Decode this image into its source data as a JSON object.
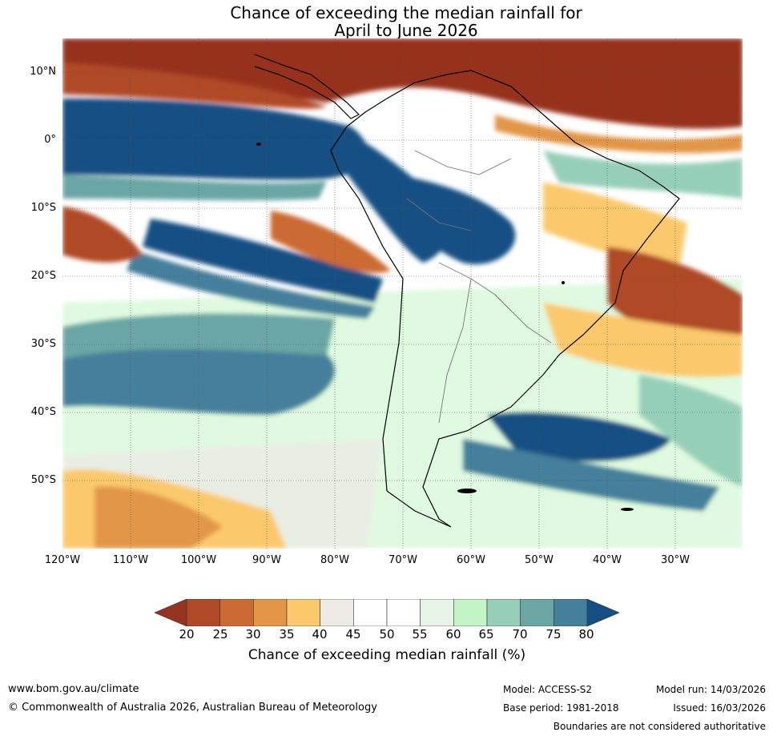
{
  "title": {
    "line1": "Chance of exceeding the median rainfall for",
    "line2": "April to June 2026"
  },
  "map": {
    "lon_range": [
      -120,
      -20
    ],
    "lat_range": [
      -60,
      15
    ],
    "lat_labels": [
      "10°N",
      "0°",
      "10°S",
      "20°S",
      "30°S",
      "40°S",
      "50°S"
    ],
    "lon_labels": [
      "120°W",
      "110°W",
      "100°W",
      "90°W",
      "80°W",
      "70°W",
      "60°W",
      "50°W",
      "40°W",
      "30°W"
    ]
  },
  "colorbar": {
    "ticks": [
      "20",
      "25",
      "30",
      "35",
      "40",
      "45",
      "50",
      "55",
      "60",
      "65",
      "70",
      "75",
      "80"
    ],
    "colors": [
      "#96331f",
      "#b04a26",
      "#cb6a33",
      "#e29646",
      "#fbc96c",
      "#ecebe6",
      "#ffffff",
      "#ffffff",
      "#e6f5e8",
      "#c4f5c6",
      "#96cfb8",
      "#6ba6a5",
      "#447f9b",
      "#134f83"
    ],
    "label": "Chance of exceeding median rainfall (%)"
  },
  "footer": {
    "website": "www.bom.gov.au/climate",
    "copyright": "© Commonwealth of Australia 2026, Australian Bureau of Meteorology",
    "model": "Model: ACCESS-S2",
    "base_period": "Base period: 1981-2018",
    "model_run": "Model run: 14/03/2026",
    "issued": "Issued: 16/03/2026",
    "disclaimer": "Boundaries are not considered authoritative"
  }
}
